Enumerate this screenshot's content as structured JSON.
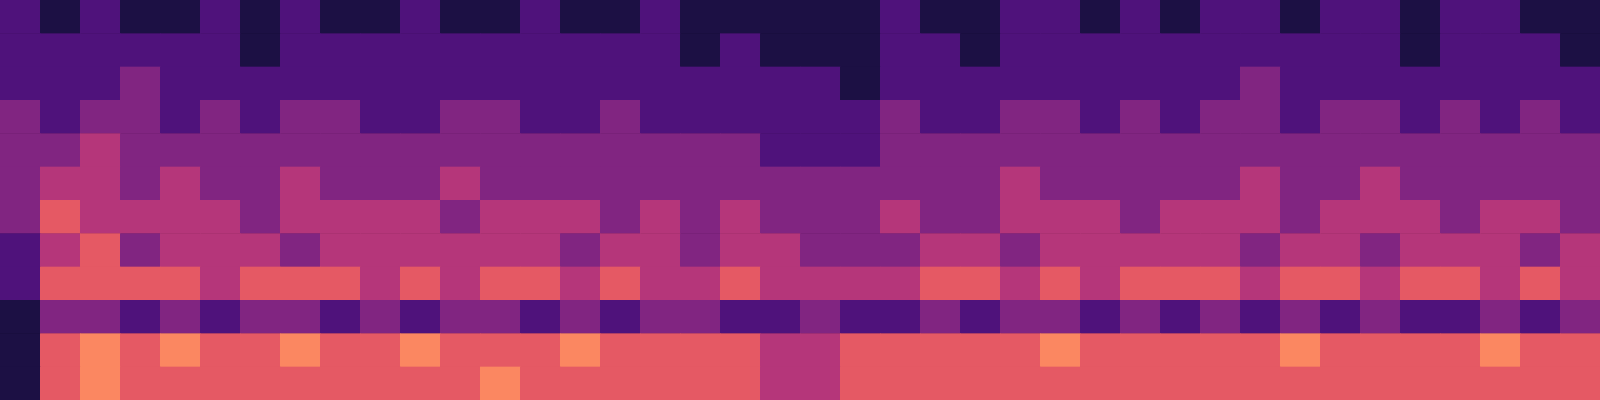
{
  "chart_data": {
    "type": "heatmap",
    "color": "magma",
    "tick_labels": false,
    "zlim": [
      0,
      8
    ],
    "cells": [
      [
        2,
        1,
        2,
        1,
        1,
        2,
        1,
        2,
        1,
        1,
        2,
        1,
        1,
        2,
        1,
        1,
        2,
        1,
        1,
        1,
        1,
        1,
        2,
        1,
        1,
        2,
        2,
        1,
        2,
        1,
        2,
        2,
        1,
        2,
        2,
        1,
        2,
        2,
        1,
        1
      ],
      [
        2,
        2,
        2,
        2,
        2,
        2,
        1,
        2,
        2,
        2,
        2,
        2,
        2,
        2,
        2,
        2,
        2,
        1,
        2,
        1,
        1,
        1,
        2,
        2,
        1,
        2,
        2,
        2,
        2,
        2,
        2,
        2,
        2,
        2,
        2,
        1,
        2,
        2,
        2,
        1
      ],
      [
        2,
        2,
        2,
        3,
        2,
        2,
        2,
        2,
        2,
        2,
        2,
        2,
        2,
        2,
        2,
        2,
        2,
        2,
        2,
        2,
        2,
        1,
        2,
        2,
        2,
        2,
        2,
        2,
        2,
        2,
        2,
        3,
        2,
        2,
        2,
        2,
        2,
        2,
        2,
        2
      ],
      [
        3,
        2,
        3,
        3,
        2,
        3,
        2,
        3,
        3,
        2,
        2,
        3,
        3,
        2,
        2,
        3,
        2,
        2,
        2,
        2,
        2,
        2,
        3,
        2,
        2,
        3,
        3,
        2,
        3,
        2,
        3,
        3,
        2,
        3,
        3,
        2,
        3,
        2,
        3,
        2
      ],
      [
        3,
        3,
        4,
        3,
        3,
        3,
        3,
        3,
        3,
        3,
        3,
        3,
        3,
        3,
        3,
        3,
        3,
        3,
        3,
        2,
        2,
        2,
        3,
        3,
        3,
        3,
        3,
        3,
        3,
        3,
        3,
        3,
        3,
        3,
        3,
        3,
        3,
        3,
        3,
        3
      ],
      [
        3,
        4,
        4,
        3,
        4,
        3,
        3,
        4,
        3,
        3,
        3,
        4,
        3,
        3,
        3,
        3,
        3,
        3,
        3,
        3,
        3,
        3,
        3,
        3,
        3,
        4,
        3,
        3,
        3,
        3,
        3,
        4,
        3,
        3,
        4,
        3,
        3,
        3,
        3,
        3
      ],
      [
        3,
        5,
        4,
        4,
        4,
        4,
        3,
        4,
        4,
        4,
        4,
        3,
        4,
        4,
        4,
        3,
        4,
        3,
        4,
        3,
        3,
        3,
        4,
        3,
        3,
        4,
        4,
        4,
        3,
        4,
        4,
        4,
        3,
        4,
        4,
        4,
        3,
        4,
        4,
        3
      ],
      [
        2,
        4,
        5,
        3,
        4,
        4,
        4,
        3,
        4,
        4,
        4,
        4,
        4,
        4,
        3,
        4,
        4,
        3,
        4,
        4,
        3,
        3,
        3,
        4,
        4,
        3,
        4,
        4,
        4,
        4,
        4,
        3,
        4,
        4,
        3,
        4,
        4,
        4,
        3,
        4
      ],
      [
        2,
        5,
        5,
        5,
        5,
        4,
        5,
        5,
        5,
        4,
        5,
        4,
        5,
        5,
        4,
        5,
        4,
        4,
        5,
        4,
        4,
        4,
        4,
        5,
        5,
        4,
        5,
        4,
        5,
        5,
        5,
        4,
        5,
        5,
        4,
        5,
        5,
        4,
        5,
        4
      ],
      [
        1,
        3,
        3,
        2,
        3,
        2,
        3,
        3,
        2,
        3,
        2,
        3,
        3,
        2,
        3,
        2,
        3,
        3,
        2,
        2,
        3,
        2,
        2,
        3,
        2,
        3,
        3,
        2,
        3,
        2,
        3,
        2,
        3,
        2,
        3,
        2,
        2,
        3,
        2,
        3
      ],
      [
        1,
        5,
        6,
        5,
        6,
        5,
        5,
        6,
        5,
        5,
        6,
        5,
        5,
        5,
        6,
        5,
        5,
        5,
        5,
        4,
        4,
        5,
        5,
        5,
        5,
        5,
        6,
        5,
        5,
        5,
        5,
        5,
        6,
        5,
        5,
        5,
        5,
        6,
        5,
        5
      ],
      [
        1,
        5,
        6,
        5,
        5,
        5,
        5,
        5,
        5,
        5,
        5,
        5,
        6,
        5,
        5,
        5,
        5,
        5,
        5,
        4,
        4,
        5,
        5,
        5,
        5,
        5,
        5,
        5,
        5,
        5,
        5,
        5,
        5,
        5,
        5,
        5,
        5,
        5,
        5,
        5
      ]
    ]
  }
}
